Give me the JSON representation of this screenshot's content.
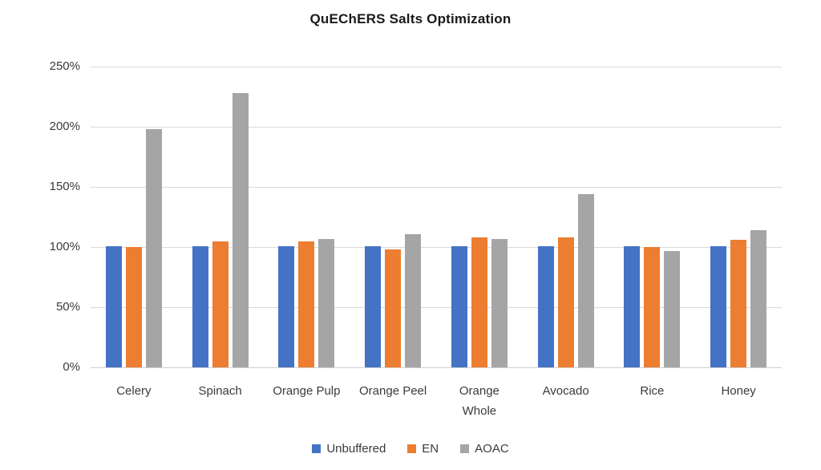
{
  "title": "QuEChERS Salts Optimization",
  "chart_data": {
    "type": "bar",
    "title": "QuEChERS Salts Optimization",
    "categories": [
      "Celery",
      "Spinach",
      "Orange Pulp",
      "Orange Peel",
      "Orange Whole",
      "Avocado",
      "Rice",
      "Honey"
    ],
    "series": [
      {
        "name": "Unbuffered",
        "color": "#4472C4",
        "values": [
          101,
          101,
          101,
          101,
          101,
          101,
          101,
          101
        ]
      },
      {
        "name": "EN",
        "color": "#ED7D31",
        "values": [
          100,
          105,
          105,
          98,
          108,
          108,
          100,
          106
        ]
      },
      {
        "name": "AOAC",
        "color": "#A5A5A5",
        "values": [
          198,
          228,
          107,
          111,
          107,
          144,
          97,
          114
        ]
      }
    ],
    "xlabel": "",
    "ylabel": "",
    "ylim": [
      0,
      250
    ],
    "ytick_step": 50,
    "ytick_labels": [
      "0%",
      "50%",
      "100%",
      "150%",
      "200%",
      "250%"
    ],
    "unit": "percent",
    "grid": true,
    "legend_position": "bottom"
  },
  "colors": {
    "background": "#FFFFFF",
    "gridline": "#D9D9D9",
    "axis_line": "#CFCFCF",
    "axis_text": "#3B3B3B",
    "title_text": "#1A1A1A"
  }
}
